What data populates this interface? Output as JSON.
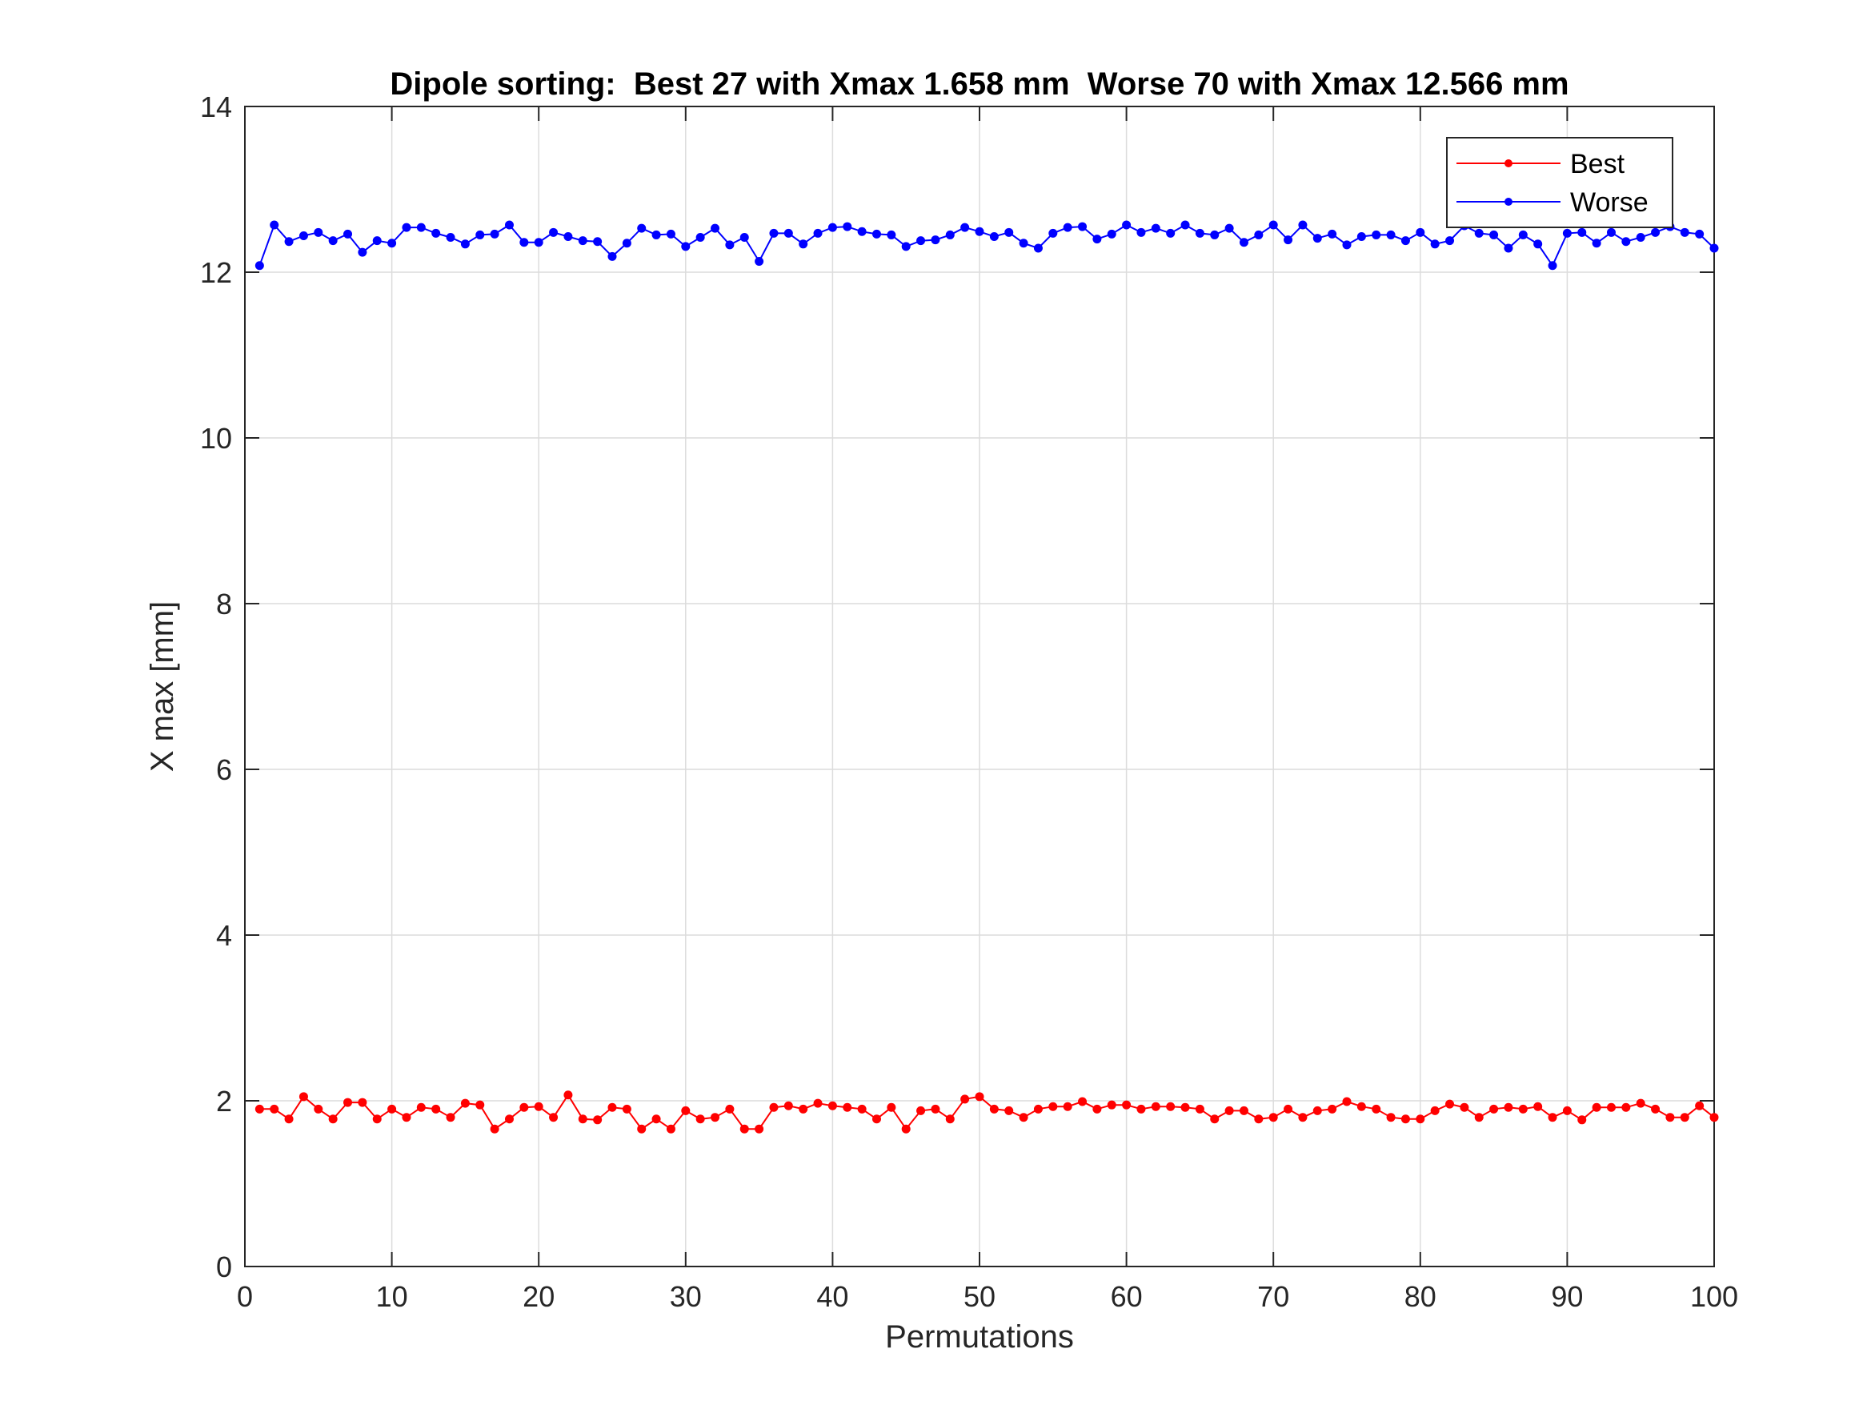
{
  "chart_data": {
    "type": "line",
    "title": "Dipole sorting:  Best 27 with Xmax 1.658 mm  Worse 70 with Xmax 12.566 mm",
    "xlabel": "Permutations",
    "ylabel": "X max [mm]",
    "xlim": [
      0,
      100
    ],
    "ylim": [
      0,
      14
    ],
    "xticks": [
      0,
      10,
      20,
      30,
      40,
      50,
      60,
      70,
      80,
      90,
      100
    ],
    "yticks": [
      0,
      2,
      4,
      6,
      8,
      10,
      12,
      14
    ],
    "grid": true,
    "legend_position": "top-right",
    "x": [
      1,
      2,
      3,
      4,
      5,
      6,
      7,
      8,
      9,
      10,
      11,
      12,
      13,
      14,
      15,
      16,
      17,
      18,
      19,
      20,
      21,
      22,
      23,
      24,
      25,
      26,
      27,
      28,
      29,
      30,
      31,
      32,
      33,
      34,
      35,
      36,
      37,
      38,
      39,
      40,
      41,
      42,
      43,
      44,
      45,
      46,
      47,
      48,
      49,
      50,
      51,
      52,
      53,
      54,
      55,
      56,
      57,
      58,
      59,
      60,
      61,
      62,
      63,
      64,
      65,
      66,
      67,
      68,
      69,
      70,
      71,
      72,
      73,
      74,
      75,
      76,
      77,
      78,
      79,
      80,
      81,
      82,
      83,
      84,
      85,
      86,
      87,
      88,
      89,
      90,
      91,
      92,
      93,
      94,
      95,
      96,
      97,
      98,
      99,
      100
    ],
    "series": [
      {
        "name": "Best",
        "color": "#ff0000",
        "values": [
          1.9,
          1.9,
          1.78,
          2.05,
          1.9,
          1.78,
          1.98,
          1.98,
          1.78,
          1.9,
          1.8,
          1.92,
          1.9,
          1.8,
          1.97,
          1.95,
          1.66,
          1.78,
          1.92,
          1.93,
          1.8,
          2.07,
          1.78,
          1.77,
          1.92,
          1.9,
          1.66,
          1.78,
          1.66,
          1.88,
          1.78,
          1.8,
          1.9,
          1.66,
          1.66,
          1.92,
          1.94,
          1.9,
          1.97,
          1.94,
          1.92,
          1.9,
          1.78,
          1.92,
          1.66,
          1.88,
          1.9,
          1.78,
          2.02,
          2.05,
          1.9,
          1.88,
          1.8,
          1.9,
          1.93,
          1.93,
          1.99,
          1.9,
          1.95,
          1.95,
          1.9,
          1.93,
          1.93,
          1.92,
          1.9,
          1.78,
          1.88,
          1.88,
          1.78,
          1.8,
          1.9,
          1.8,
          1.88,
          1.9,
          1.99,
          1.93,
          1.9,
          1.8,
          1.78,
          1.78,
          1.88,
          1.96,
          1.92,
          1.8,
          1.9,
          1.92,
          1.9,
          1.93,
          1.8,
          1.88,
          1.77,
          1.92,
          1.92,
          1.92,
          1.97,
          1.9,
          1.8,
          1.8,
          1.94,
          1.8
        ]
      },
      {
        "name": "Worse",
        "color": "#0000ff",
        "values": [
          12.08,
          12.57,
          12.37,
          12.44,
          12.48,
          12.38,
          12.46,
          12.24,
          12.38,
          12.35,
          12.54,
          12.54,
          12.47,
          12.42,
          12.34,
          12.45,
          12.46,
          12.57,
          12.36,
          12.36,
          12.48,
          12.43,
          12.38,
          12.37,
          12.19,
          12.35,
          12.53,
          12.45,
          12.46,
          12.31,
          12.42,
          12.53,
          12.33,
          12.42,
          12.13,
          12.47,
          12.47,
          12.34,
          12.47,
          12.54,
          12.55,
          12.49,
          12.46,
          12.45,
          12.31,
          12.38,
          12.39,
          12.45,
          12.54,
          12.49,
          12.43,
          12.48,
          12.35,
          12.29,
          12.47,
          12.54,
          12.55,
          12.4,
          12.46,
          12.57,
          12.48,
          12.53,
          12.47,
          12.57,
          12.47,
          12.45,
          12.53,
          12.36,
          12.45,
          12.57,
          12.39,
          12.57,
          12.41,
          12.46,
          12.33,
          12.43,
          12.45,
          12.45,
          12.38,
          12.48,
          12.34,
          12.38,
          12.56,
          12.47,
          12.45,
          12.29,
          12.45,
          12.34,
          12.08,
          12.47,
          12.48,
          12.35,
          12.48,
          12.37,
          12.42,
          12.48,
          12.55,
          12.48,
          12.46,
          12.29
        ]
      }
    ]
  }
}
